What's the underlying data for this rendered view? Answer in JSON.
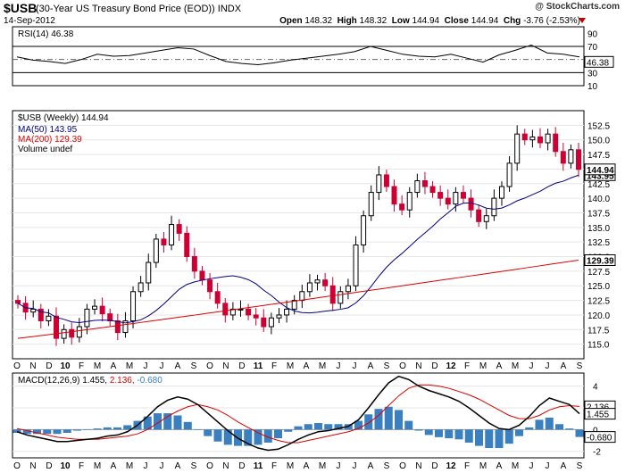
{
  "header": {
    "symbol": "$USB",
    "description": "(30-Year US Treasury Bond Price (EOD)) INDX",
    "date": "14-Sep-2012",
    "copyright": "@ StockCharts.com",
    "open_label": "Open",
    "open": "148.32",
    "high_label": "High",
    "high": "148.32",
    "low_label": "Low",
    "low": "144.94",
    "close_label": "Close",
    "close": "144.94",
    "chg_label": "Chg",
    "chg": "-3.76 (-2.53%)"
  },
  "colors": {
    "up": "#000000",
    "down": "#cc0033",
    "ma50": "#000080",
    "ma200": "#dd0000",
    "rsi": "#000000",
    "macd": "#000000",
    "signal": "#dd0000",
    "hist": "#3a7fc0"
  },
  "legend": {
    "rsi": "RSI(14) 46.38",
    "price": "$USB (Weekly) 144.94",
    "ma50": "MA(50) 143.95",
    "ma200": "MA(200) 129.39",
    "volume": "Volume undef",
    "macd_main": "MACD(12,26,9) 1.455,",
    "macd_signal": "2.136,",
    "macd_hist": "-0.680"
  },
  "chart_data": [
    {
      "type": "line",
      "name": "RSI(14)",
      "ylim": [
        10,
        100
      ],
      "y_ticks": [
        90,
        70,
        50,
        30,
        10
      ],
      "reference_lines": [
        70,
        50,
        30
      ],
      "last_value": 46.38,
      "x": [
        "O",
        "N",
        "D",
        "10",
        "F",
        "M",
        "A",
        "M",
        "J",
        "J",
        "A",
        "S",
        "O",
        "N",
        "D",
        "11",
        "F",
        "M",
        "A",
        "M",
        "J",
        "J",
        "A",
        "S",
        "O",
        "N",
        "D",
        "12",
        "F",
        "M",
        "A",
        "M",
        "J",
        "J",
        "A",
        "S"
      ],
      "values": [
        54,
        49,
        47,
        44,
        50,
        58,
        55,
        56,
        60,
        64,
        68,
        66,
        56,
        47,
        44,
        42,
        45,
        49,
        52,
        55,
        58,
        62,
        70,
        64,
        58,
        55,
        54,
        58,
        52,
        46,
        57,
        64,
        72,
        60,
        58,
        54
      ]
    },
    {
      "type": "candlestick",
      "name": "$USB (Weekly)",
      "ylim": [
        112.5,
        155
      ],
      "y_ticks": [
        152.5,
        150,
        147.5,
        145,
        142.5,
        140,
        137.5,
        135,
        132.5,
        130,
        127.5,
        125,
        122.5,
        120,
        117.5,
        115
      ],
      "last_close": 144.94,
      "x_labels": [
        "O",
        "N",
        "D",
        "10",
        "F",
        "M",
        "A",
        "M",
        "J",
        "J",
        "A",
        "S",
        "O",
        "N",
        "D",
        "11",
        "F",
        "M",
        "A",
        "M",
        "J",
        "J",
        "A",
        "S",
        "O",
        "N",
        "D",
        "12",
        "F",
        "M",
        "A",
        "M",
        "J",
        "J",
        "A",
        "S"
      ],
      "close": [
        122.0,
        120.5,
        121.0,
        119.0,
        119.8,
        116.0,
        117.5,
        116.2,
        118.0,
        121.0,
        121.5,
        120.2,
        119.0,
        117.0,
        119.0,
        124.0,
        125.5,
        129.0,
        133.0,
        132.0,
        135.5,
        134.0,
        130.0,
        127.5,
        126.0,
        124.0,
        122.0,
        120.0,
        121.0,
        121.0,
        120.0,
        119.5,
        118.0,
        119.5,
        120.0,
        121.0,
        122.5,
        124.0,
        125.5,
        126.0,
        125.0,
        122.0,
        124.0,
        125.0,
        132.0,
        137.0,
        141.0,
        144.0,
        142.0,
        139.0,
        138.0,
        141.0,
        143.0,
        142.0,
        141.0,
        140.0,
        139.0,
        141.0,
        140.0,
        138.0,
        136.0,
        137.0,
        140.0,
        142.0,
        146.0,
        151.0,
        150.0,
        150.5,
        149.5,
        151.0,
        148.0,
        146.0,
        148.3,
        144.94
      ],
      "ma50_end": 143.95,
      "ma200_end": 129.39
    },
    {
      "type": "line",
      "name": "MACD(12,26,9)",
      "ylim": [
        -2.6,
        5.2
      ],
      "y_ticks": [
        4,
        2,
        0,
        -2
      ],
      "last_values": {
        "macd": 1.455,
        "signal": 2.136,
        "histogram": -0.68
      },
      "macd": [
        -0.2,
        -0.5,
        -0.7,
        -0.9,
        -1.1,
        -1.1,
        -1.0,
        -0.9,
        -0.8,
        -0.6,
        -0.5,
        -0.2,
        0.4,
        1.2,
        2.1,
        2.7,
        3.0,
        2.8,
        2.3,
        1.5,
        0.7,
        -0.1,
        -0.8,
        -1.3,
        -1.7,
        -1.9,
        -1.8,
        -1.4,
        -0.9,
        -0.5,
        -0.2,
        -0.1,
        0.1,
        0.3,
        0.9,
        2.0,
        3.2,
        4.3,
        4.9,
        4.6,
        4.0,
        3.6,
        3.3,
        3.0,
        2.6,
        2.0,
        1.3,
        0.6,
        0.1,
        0.0,
        0.4,
        1.2,
        2.2,
        2.9,
        2.6,
        2.3,
        1.455
      ],
      "signal": [
        0.1,
        -0.1,
        -0.3,
        -0.5,
        -0.7,
        -0.8,
        -0.9,
        -0.9,
        -0.9,
        -0.8,
        -0.7,
        -0.6,
        -0.4,
        0.0,
        0.6,
        1.2,
        1.7,
        2.1,
        2.3,
        2.1,
        1.8,
        1.3,
        0.7,
        0.2,
        -0.3,
        -0.7,
        -1.0,
        -1.2,
        -1.2,
        -1.0,
        -0.8,
        -0.6,
        -0.4,
        -0.2,
        0.1,
        0.6,
        1.3,
        2.2,
        3.1,
        3.8,
        4.1,
        4.1,
        4.0,
        3.8,
        3.5,
        3.2,
        2.8,
        2.3,
        1.8,
        1.3,
        1.0,
        1.0,
        1.3,
        1.8,
        2.1,
        2.2,
        2.136
      ]
    }
  ]
}
